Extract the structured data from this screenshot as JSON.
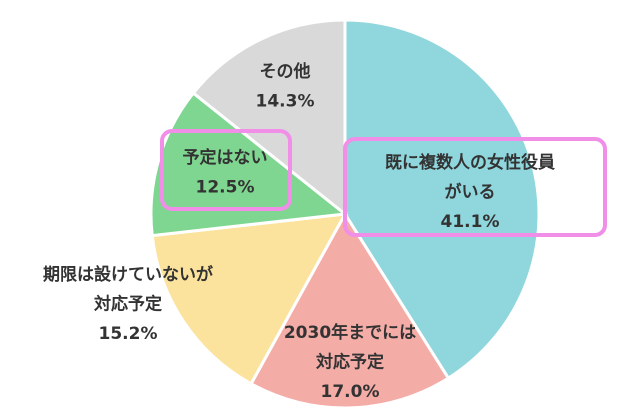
{
  "chart_data": {
    "type": "pie",
    "categories": [
      [
        "既に複数人の女性役員",
        "がいる"
      ],
      [
        "2030年までには",
        "対応予定"
      ],
      [
        "期限は設けていないが",
        "対応予定"
      ],
      [
        "予定はない"
      ],
      [
        "その他"
      ]
    ],
    "values": [
      41.1,
      17.0,
      15.2,
      12.5,
      14.3
    ],
    "value_labels": [
      "41.1%",
      "17.0%",
      "15.2%",
      "12.5%",
      "14.3%"
    ],
    "colors": [
      "#8fd6dd",
      "#f4aca7",
      "#fbe39d",
      "#7fd690",
      "#d9d9d9"
    ]
  }
}
